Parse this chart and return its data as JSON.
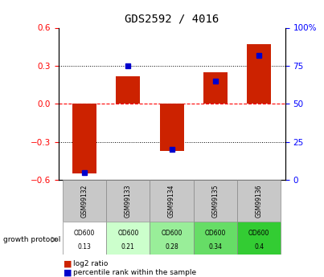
{
  "title": "GDS2592 / 4016",
  "samples": [
    "GSM99132",
    "GSM99133",
    "GSM99134",
    "GSM99135",
    "GSM99136"
  ],
  "log2_ratio": [
    -0.55,
    0.22,
    -0.37,
    0.25,
    0.47
  ],
  "percentile": [
    5,
    75,
    20,
    65,
    82
  ],
  "protocol_label": "growth protocol",
  "protocol_top": [
    "OD600",
    "OD600",
    "OD600",
    "OD600",
    "OD600"
  ],
  "protocol_bottom": [
    "0.13",
    "0.21",
    "0.28",
    "0.34",
    "0.4"
  ],
  "protocol_colors": [
    "#ffffff",
    "#ccffcc",
    "#99ee99",
    "#66dd66",
    "#33cc33"
  ],
  "sample_bg_color": "#c8c8c8",
  "bar_color": "#cc2200",
  "percentile_color": "#0000cc",
  "ylim": [
    -0.6,
    0.6
  ],
  "yticks_left": [
    -0.6,
    -0.3,
    0.0,
    0.3,
    0.6
  ],
  "yticks_right": [
    0,
    25,
    50,
    75,
    100
  ],
  "bar_width": 0.55
}
